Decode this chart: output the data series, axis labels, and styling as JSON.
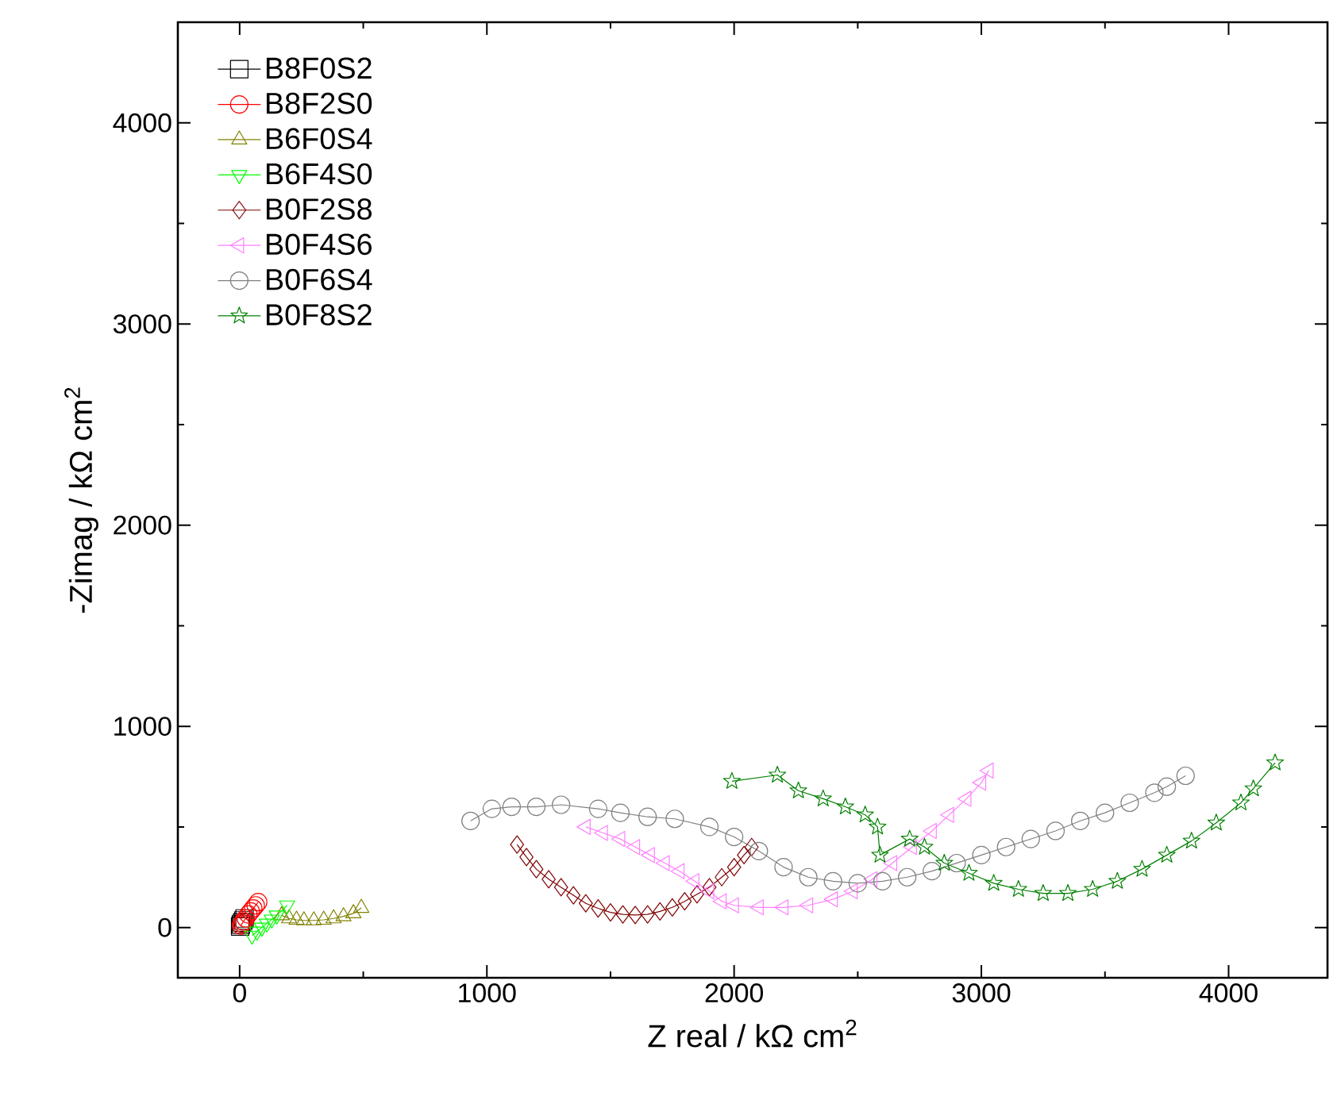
{
  "chart_data": {
    "type": "line",
    "xlabel": "Z real / kΩ cm$^{2}$",
    "ylabel": "-Zimag / kΩ cm$^{2}$",
    "xlim": [
      -250,
      4400
    ],
    "ylim": [
      -250,
      4500
    ],
    "xticks": [
      0,
      1000,
      2000,
      3000,
      4000
    ],
    "yticks": [
      0,
      1000,
      2000,
      3000,
      4000
    ],
    "grid": false,
    "legend": "top left",
    "line_style": "solid",
    "series": [
      {
        "name": "B8F0S2",
        "type": "scatter",
        "color": "#000000",
        "marker": "square",
        "x": [
          2,
          5,
          10,
          15,
          20
        ],
        "values": [
          5,
          15,
          25,
          35,
          45
        ]
      },
      {
        "name": "B8F2S0",
        "color": "#ff0000",
        "marker": "circle",
        "x": [
          5,
          10,
          15,
          25,
          35,
          45,
          55,
          65,
          75
        ],
        "values": [
          10,
          20,
          30,
          45,
          65,
          80,
          95,
          110,
          126
        ]
      },
      {
        "name": "B6F0S4",
        "color": "#808000",
        "marker": "triangle",
        "x": [
          170,
          200,
          230,
          260,
          300,
          340,
          380,
          420,
          460,
          492
        ],
        "values": [
          60,
          45,
          38,
          35,
          35,
          38,
          45,
          55,
          70,
          97
        ]
      },
      {
        "name": "B6F4S0",
        "color": "#00ff00",
        "marker": "triangle_down",
        "x": [
          50,
          70,
          90,
          110,
          130,
          150,
          192
        ],
        "values": [
          -40,
          -20,
          0,
          20,
          40,
          60,
          110
        ]
      },
      {
        "name": "B0F2S8",
        "color": "#800000",
        "marker": "diamond",
        "x": [
          1122,
          1160,
          1200,
          1250,
          1300,
          1350,
          1400,
          1450,
          1500,
          1550,
          1600,
          1650,
          1700,
          1750,
          1800,
          1850,
          1900,
          1950,
          2000,
          2040,
          2071
        ],
        "values": [
          412,
          350,
          290,
          240,
          200,
          160,
          120,
          95,
          75,
          65,
          62,
          65,
          80,
          100,
          130,
          165,
          200,
          250,
          300,
          360,
          400
        ]
      },
      {
        "name": "B0F4S6",
        "color": "#ff80ff",
        "marker": "triangle_left",
        "x": [
          1400,
          1470,
          1540,
          1600,
          1660,
          1720,
          1780,
          1840,
          1900,
          1950,
          2000,
          2100,
          2200,
          2300,
          2400,
          2480,
          2560,
          2640,
          2720,
          2800,
          2870,
          2940,
          3000,
          3030
        ],
        "values": [
          500,
          470,
          440,
          400,
          360,
          320,
          280,
          230,
          180,
          130,
          110,
          100,
          100,
          110,
          140,
          180,
          240,
          320,
          400,
          480,
          560,
          640,
          720,
          780
        ]
      },
      {
        "name": "B0F6S4",
        "color": "#808080",
        "marker": "circle",
        "x": [
          934,
          1020,
          1100,
          1200,
          1300,
          1450,
          1540,
          1650,
          1760,
          1900,
          2000,
          2100,
          2200,
          2300,
          2400,
          2500,
          2600,
          2700,
          2800,
          2900,
          3000,
          3100,
          3200,
          3300,
          3400,
          3500,
          3600,
          3700,
          3750,
          3826
        ],
        "values": [
          530,
          590,
          600,
          600,
          610,
          590,
          570,
          550,
          540,
          500,
          450,
          380,
          300,
          250,
          230,
          220,
          230,
          250,
          280,
          320,
          360,
          400,
          440,
          480,
          530,
          570,
          620,
          670,
          700,
          754
        ]
      },
      {
        "name": "B0F8S2",
        "color": "#008000",
        "marker": "star",
        "x": [
          1991,
          2175,
          2260,
          2360,
          2450,
          2530,
          2580,
          2590,
          2710,
          2770,
          2850,
          2950,
          3050,
          3150,
          3250,
          3350,
          3450,
          3550,
          3650,
          3750,
          3850,
          3950,
          4050,
          4100,
          4188
        ],
        "values": [
          727,
          758,
          680,
          640,
          600,
          560,
          500,
          360,
          440,
          400,
          320,
          270,
          220,
          190,
          170,
          170,
          190,
          230,
          290,
          360,
          430,
          520,
          620,
          690,
          819
        ]
      }
    ]
  }
}
